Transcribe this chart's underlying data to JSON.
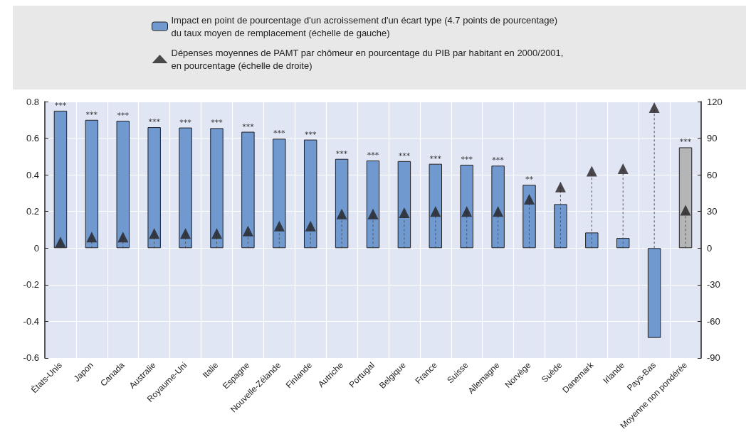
{
  "chart_data": {
    "type": "bar",
    "categories": [
      "États-Unis",
      "Japon",
      "Canada",
      "Australie",
      "Royaume-Uni",
      "Italie",
      "Espagne",
      "Nouvelle-Zélande",
      "Finlande",
      "Autriche",
      "Portugal",
      "Belgique",
      "France",
      "Suisse",
      "Allemagne",
      "Norvège",
      "Suède",
      "Danemark",
      "Irlande",
      "Pays-Bas",
      "Moyenne non pondérée"
    ],
    "series": [
      {
        "name": "Impact en point de pourcentage d'un acroissement d'un écart type (4.7 points de pourcentage)\ndu taux moyen de remplacement (échelle de gauche)",
        "color": "#7099d0",
        "colors": [
          "#7099d0",
          "#7099d0",
          "#7099d0",
          "#7099d0",
          "#7099d0",
          "#7099d0",
          "#7099d0",
          "#7099d0",
          "#7099d0",
          "#7099d0",
          "#7099d0",
          "#7099d0",
          "#7099d0",
          "#7099d0",
          "#7099d0",
          "#7099d0",
          "#7099d0",
          "#7099d0",
          "#7099d0",
          "#7099d0",
          "#b3b5b6"
        ],
        "values": [
          0.75,
          0.7,
          0.695,
          0.66,
          0.658,
          0.655,
          0.635,
          0.597,
          0.592,
          0.487,
          0.478,
          0.475,
          0.46,
          0.455,
          0.45,
          0.345,
          0.24,
          0.085,
          0.055,
          -0.49,
          0.55
        ],
        "value_labels": [
          "***",
          "***",
          "***",
          "***",
          "***",
          "***",
          "***",
          "***",
          "***",
          "***",
          "***",
          "***",
          "***",
          "***",
          "***",
          "**",
          null,
          null,
          null,
          null,
          "***"
        ]
      },
      {
        "type": "lollipop",
        "axis": "y2",
        "marker": "triangle",
        "line_style": "dashed",
        "name": "Dépenses moyennes de PAMT par chômeur en pourcentage du PIB par habitant en 2000/2001,\nen pourcentage (échelle de droite)",
        "color": "#231f20",
        "values": [
          5,
          9,
          9,
          12,
          12,
          12,
          14,
          18,
          18,
          28,
          28,
          29,
          30,
          30,
          30,
          40,
          50,
          63,
          65,
          115,
          31
        ]
      }
    ],
    "ylim": [
      -0.6,
      0.8
    ],
    "yticks": [
      -0.6,
      -0.4,
      -0.2,
      0,
      0.2,
      0.4,
      0.6,
      0.8
    ],
    "y2lim": [
      -90,
      120
    ],
    "y2ticks": [
      -90,
      -60,
      -30,
      0,
      30,
      60,
      90,
      120
    ],
    "grid": true,
    "legend": "top"
  }
}
